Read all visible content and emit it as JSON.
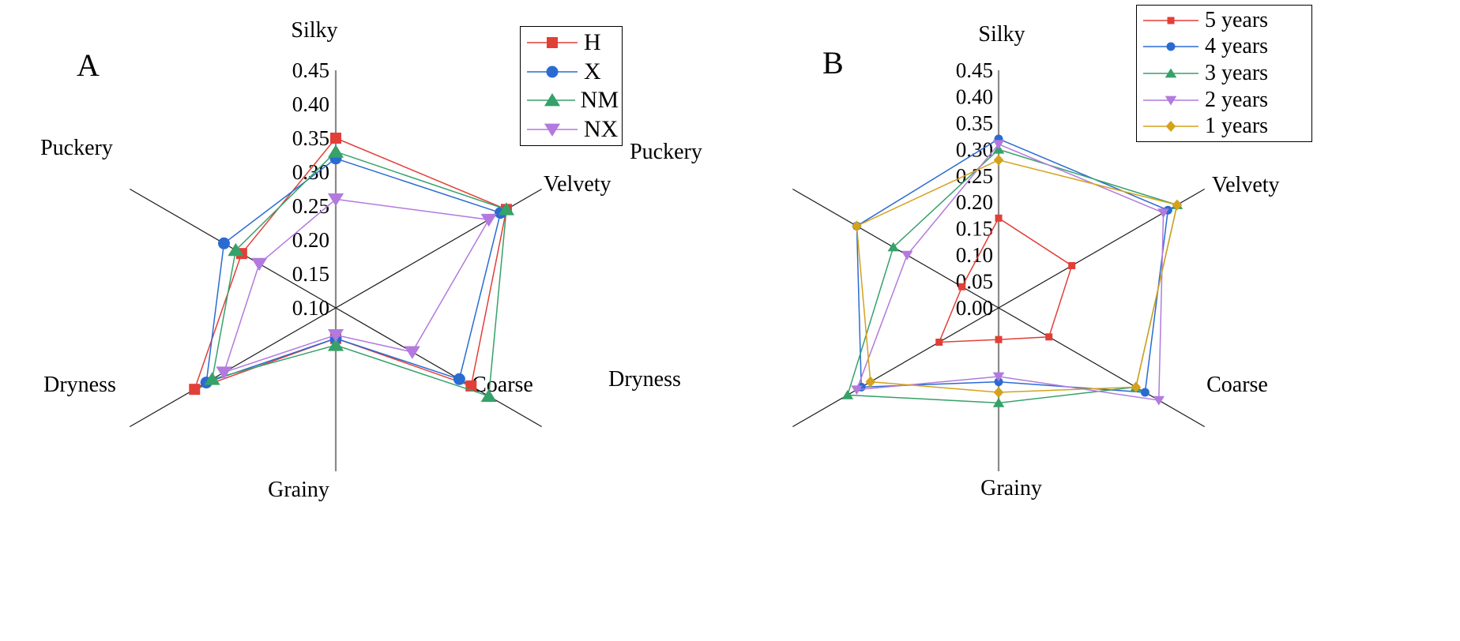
{
  "chart_data": [
    {
      "type": "radar",
      "panel_label": "A",
      "axes": [
        "Silky",
        "Velvety",
        "Coarse",
        "Grainy",
        "Dryness",
        "Puckery"
      ],
      "r_axis": {
        "min": 0.1,
        "max": 0.45,
        "step": 0.05,
        "tick_labels": [
          "0.45",
          "0.40",
          "0.35",
          "0.30",
          "0.25",
          "0.20",
          "0.15",
          "0.10"
        ]
      },
      "grid": false,
      "legend_position": "outside-top-right",
      "series": [
        {
          "name": "H",
          "marker": "square",
          "color": "#e23f38",
          "values": [
            0.35,
            0.39,
            0.33,
            0.145,
            0.34,
            0.26
          ]
        },
        {
          "name": "X",
          "marker": "circle",
          "color": "#2a6bd2",
          "values": [
            0.32,
            0.38,
            0.31,
            0.145,
            0.32,
            0.29
          ]
        },
        {
          "name": "NM",
          "marker": "triangle-up",
          "color": "#36a169",
          "values": [
            0.33,
            0.39,
            0.36,
            0.155,
            0.31,
            0.27
          ]
        },
        {
          "name": "NX",
          "marker": "triangle-down",
          "color": "#b27ade",
          "values": [
            0.26,
            0.36,
            0.23,
            0.14,
            0.29,
            0.23
          ]
        }
      ]
    },
    {
      "type": "radar",
      "panel_label": "B",
      "axes": [
        "Silky",
        "Velvety",
        "Coarse",
        "Grainy",
        "Dryness",
        "Puckery"
      ],
      "r_axis": {
        "min": 0.0,
        "max": 0.45,
        "step": 0.05,
        "tick_labels": [
          "0.45",
          "0.40",
          "0.35",
          "0.30",
          "0.25",
          "0.20",
          "0.15",
          "0.10",
          "0.05",
          "0.00"
        ]
      },
      "grid": false,
      "legend_position": "outside-top-right",
      "series": [
        {
          "name": "5 years",
          "marker": "square",
          "color": "#e23f38",
          "values": [
            0.17,
            0.16,
            0.11,
            0.06,
            0.13,
            0.08
          ]
        },
        {
          "name": "4 years",
          "marker": "circle",
          "color": "#2a6bd2",
          "values": [
            0.32,
            0.37,
            0.32,
            0.14,
            0.3,
            0.31
          ]
        },
        {
          "name": "3 years",
          "marker": "triangle-up",
          "color": "#36a169",
          "values": [
            0.3,
            0.39,
            0.3,
            0.18,
            0.33,
            0.23
          ]
        },
        {
          "name": "2 years",
          "marker": "triangle-down",
          "color": "#b27ade",
          "values": [
            0.31,
            0.36,
            0.35,
            0.13,
            0.31,
            0.2
          ]
        },
        {
          "name": "1 years",
          "marker": "diamond",
          "color": "#d5a21c",
          "values": [
            0.28,
            0.39,
            0.3,
            0.16,
            0.28,
            0.31
          ]
        }
      ]
    }
  ],
  "style": {
    "spoke_color": "#1a1a1a",
    "vertical_axis_color": "#8a8a8a",
    "text_color": "#000000",
    "background": "#ffffff"
  }
}
